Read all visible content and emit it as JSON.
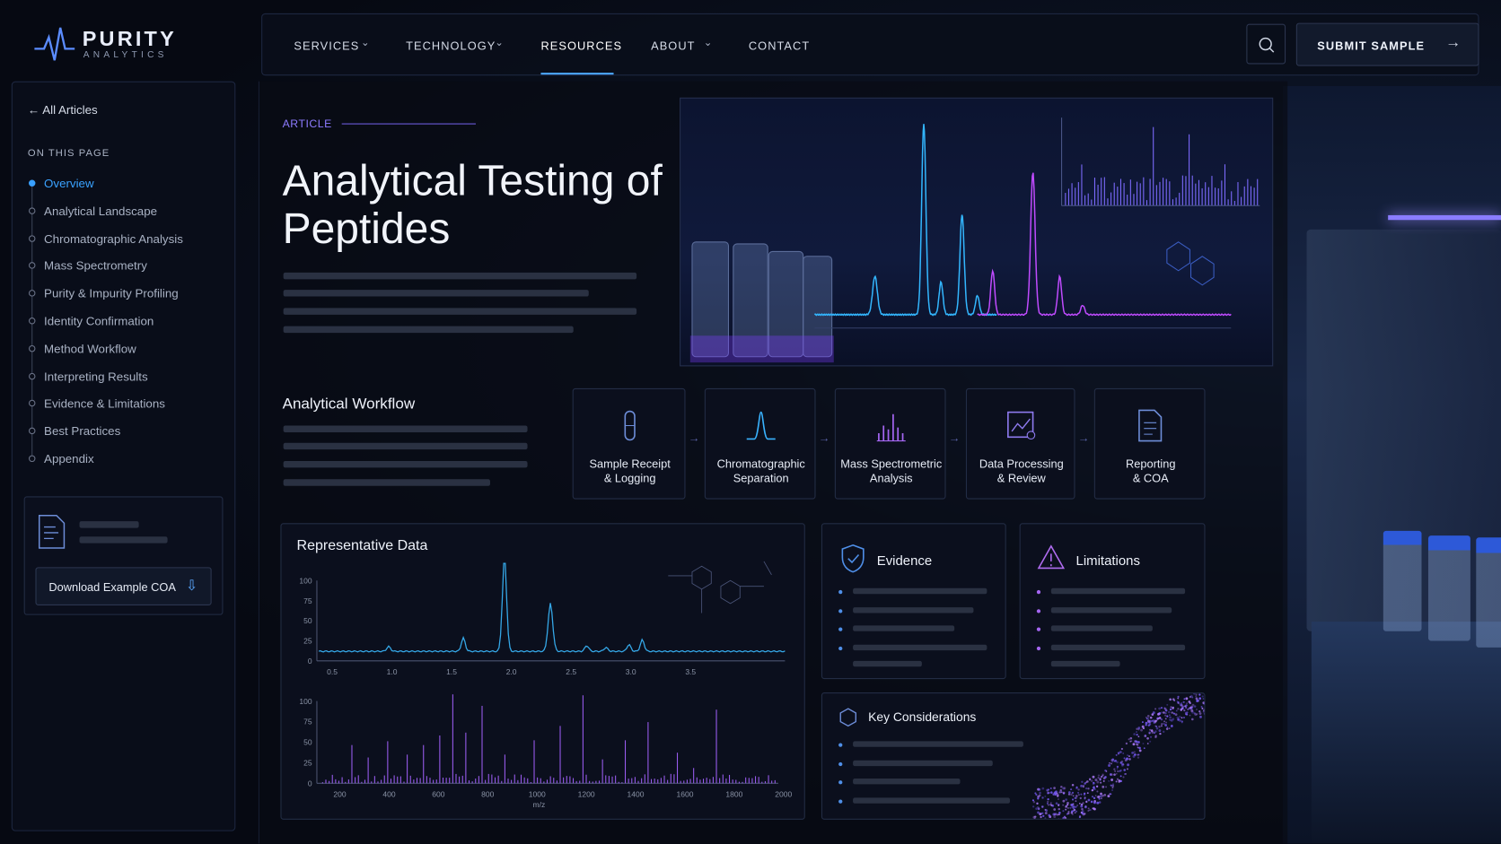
{
  "logo": {
    "name": "PURITY",
    "tagline": "ANALYTICS"
  },
  "nav": {
    "items": [
      "SERVICES",
      "TECHNOLOGY",
      "RESOURCES",
      "ABOUT",
      "CONTACT"
    ],
    "submit": "SUBMIT SAMPLE"
  },
  "sidebar": {
    "back": "All Articles",
    "heading": "ON THIS PAGE",
    "items": [
      "Overview",
      "Analytical Landscape",
      "Chromatographic Analysis",
      "Mass Spectrometry",
      "Purity & Impurity Profiling",
      "Identity Confirmation",
      "Method Workflow",
      "Interpreting Results",
      "Evidence & Limitations",
      "Best Practices",
      "Appendix"
    ],
    "download": "Download Example COA"
  },
  "article": {
    "eyebrow": "ARTICLE",
    "title": "Analytical Testing of Peptides"
  },
  "workflow": {
    "title": "Analytical Workflow",
    "steps": [
      [
        "Sample Receipt",
        "& Logging"
      ],
      [
        "Chromatographic",
        "Separation"
      ],
      [
        "Mass Spectrometric",
        "Analysis"
      ],
      [
        "Data Processing",
        "& Review"
      ],
      [
        "Reporting",
        "& COA"
      ]
    ]
  },
  "rep_data": {
    "title": "Representative Data",
    "chromatogram": {
      "yticks": [
        "100",
        "75",
        "50",
        "25",
        "0"
      ],
      "xticks": [
        "0.5",
        "1.0",
        "1.5",
        "2.0",
        "2.5",
        "3.0",
        "3.5"
      ]
    },
    "spectrum": {
      "yticks": [
        "100",
        "75",
        "50",
        "25",
        "0"
      ],
      "xticks": [
        "200",
        "400",
        "600",
        "800",
        "1000",
        "1200",
        "1400",
        "1600",
        "1800",
        "2000"
      ],
      "xlabel": "m/z"
    }
  },
  "evidence": {
    "title": "Evidence"
  },
  "limitations": {
    "title": "Limitations"
  },
  "key": {
    "title": "Key Considerations"
  }
}
